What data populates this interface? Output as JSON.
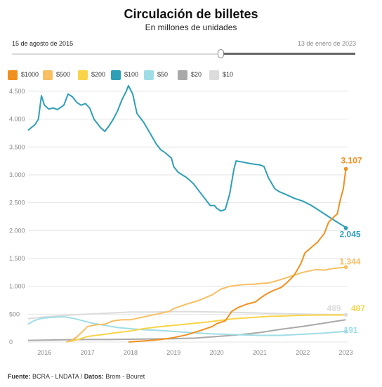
{
  "header": {
    "title": "Circulación de billetes",
    "subtitle": "En millones de unidades"
  },
  "slider": {
    "start_label": "15 de agosto de 2015",
    "end_label": "13 de enero de 2023"
  },
  "footer": {
    "fuente_label": "Fuente:",
    "fuente_value": "BCRA - LNDATA /",
    "datos_label": "Datos:",
    "datos_value": "Brom - Bouret"
  },
  "chart_data": {
    "type": "line",
    "xlim": [
      2015.62,
      2023.04
    ],
    "ylim": [
      0,
      4600
    ],
    "x_ticks": [
      2016,
      2017,
      2018,
      2019,
      2020,
      2021,
      2022,
      2023
    ],
    "y_ticks": [
      {
        "value": 0,
        "label": "0"
      },
      {
        "value": 500,
        "label": "500"
      },
      {
        "value": 1000,
        "label": "1.000"
      },
      {
        "value": 1500,
        "label": "1.500"
      },
      {
        "value": 2000,
        "label": "2.000"
      },
      {
        "value": 2500,
        "label": "2.500"
      },
      {
        "value": 3000,
        "label": "3.000"
      },
      {
        "value": 3500,
        "label": "3.500"
      },
      {
        "value": 4000,
        "label": "4.000"
      },
      {
        "value": 4500,
        "label": "4.500"
      }
    ],
    "grid": true,
    "legend_position": "top-left",
    "series": [
      {
        "name": "$1000",
        "color": "#f0901e",
        "end_label": "3.107",
        "end_value": 3107,
        "points": [
          [
            2017.95,
            0
          ],
          [
            2018.1,
            10
          ],
          [
            2018.4,
            25
          ],
          [
            2018.7,
            45
          ],
          [
            2019.0,
            80
          ],
          [
            2019.3,
            130
          ],
          [
            2019.6,
            200
          ],
          [
            2019.9,
            280
          ],
          [
            2020.0,
            330
          ],
          [
            2020.2,
            380
          ],
          [
            2020.35,
            550
          ],
          [
            2020.5,
            620
          ],
          [
            2020.7,
            680
          ],
          [
            2020.9,
            720
          ],
          [
            2021.0,
            780
          ],
          [
            2021.15,
            860
          ],
          [
            2021.3,
            920
          ],
          [
            2021.5,
            980
          ],
          [
            2021.65,
            1080
          ],
          [
            2021.8,
            1200
          ],
          [
            2021.95,
            1400
          ],
          [
            2022.05,
            1600
          ],
          [
            2022.2,
            1700
          ],
          [
            2022.35,
            1800
          ],
          [
            2022.5,
            1950
          ],
          [
            2022.6,
            2150
          ],
          [
            2022.7,
            2230
          ],
          [
            2022.8,
            2300
          ],
          [
            2022.87,
            2550
          ],
          [
            2022.94,
            2750
          ],
          [
            2023.0,
            3107
          ]
        ]
      },
      {
        "name": "$500",
        "color": "#f8bf63",
        "end_label": "1.344",
        "end_value": 1344,
        "points": [
          [
            2016.5,
            0
          ],
          [
            2016.6,
            20
          ],
          [
            2016.75,
            90
          ],
          [
            2016.9,
            200
          ],
          [
            2017.0,
            280
          ],
          [
            2017.2,
            310
          ],
          [
            2017.4,
            320
          ],
          [
            2017.6,
            380
          ],
          [
            2017.8,
            400
          ],
          [
            2018.0,
            400
          ],
          [
            2018.3,
            450
          ],
          [
            2018.6,
            500
          ],
          [
            2018.9,
            550
          ],
          [
            2019.0,
            600
          ],
          [
            2019.3,
            680
          ],
          [
            2019.6,
            750
          ],
          [
            2019.9,
            850
          ],
          [
            2020.1,
            950
          ],
          [
            2020.3,
            1000
          ],
          [
            2020.6,
            1030
          ],
          [
            2020.9,
            1040
          ],
          [
            2021.0,
            1050
          ],
          [
            2021.2,
            1060
          ],
          [
            2021.4,
            1100
          ],
          [
            2021.6,
            1150
          ],
          [
            2021.8,
            1200
          ],
          [
            2022.0,
            1250
          ],
          [
            2022.3,
            1300
          ],
          [
            2022.5,
            1290
          ],
          [
            2022.7,
            1320
          ],
          [
            2023.0,
            1344
          ]
        ]
      },
      {
        "name": "$200",
        "color": "#f9d448",
        "end_label": "",
        "end_value": 487,
        "points": [
          [
            2016.6,
            10
          ],
          [
            2016.8,
            50
          ],
          [
            2017.0,
            100
          ],
          [
            2017.3,
            130
          ],
          [
            2017.6,
            160
          ],
          [
            2018.0,
            200
          ],
          [
            2018.3,
            240
          ],
          [
            2018.6,
            270
          ],
          [
            2019.0,
            300
          ],
          [
            2019.4,
            330
          ],
          [
            2019.8,
            360
          ],
          [
            2020.0,
            380
          ],
          [
            2020.4,
            420
          ],
          [
            2020.8,
            440
          ],
          [
            2021.2,
            460
          ],
          [
            2021.6,
            470
          ],
          [
            2022.0,
            480
          ],
          [
            2022.5,
            485
          ],
          [
            2023.0,
            487
          ]
        ]
      },
      {
        "name": "$100",
        "color": "#2e9fb7",
        "end_label": "2.045",
        "end_value": 2045,
        "points": [
          [
            2015.62,
            3800
          ],
          [
            2015.7,
            3850
          ],
          [
            2015.78,
            3900
          ],
          [
            2015.86,
            4000
          ],
          [
            2015.93,
            4420
          ],
          [
            2016.0,
            4250
          ],
          [
            2016.1,
            4180
          ],
          [
            2016.2,
            4200
          ],
          [
            2016.3,
            4170
          ],
          [
            2016.45,
            4250
          ],
          [
            2016.55,
            4450
          ],
          [
            2016.65,
            4400
          ],
          [
            2016.75,
            4300
          ],
          [
            2016.85,
            4250
          ],
          [
            2016.95,
            4280
          ],
          [
            2017.05,
            4200
          ],
          [
            2017.15,
            4000
          ],
          [
            2017.3,
            3850
          ],
          [
            2017.4,
            3780
          ],
          [
            2017.5,
            3880
          ],
          [
            2017.6,
            4000
          ],
          [
            2017.7,
            4150
          ],
          [
            2017.8,
            4350
          ],
          [
            2017.9,
            4500
          ],
          [
            2017.95,
            4600
          ],
          [
            2018.05,
            4450
          ],
          [
            2018.15,
            4100
          ],
          [
            2018.3,
            3950
          ],
          [
            2018.45,
            3750
          ],
          [
            2018.6,
            3550
          ],
          [
            2018.7,
            3450
          ],
          [
            2018.8,
            3400
          ],
          [
            2018.95,
            3300
          ],
          [
            2019.0,
            3150
          ],
          [
            2019.1,
            3050
          ],
          [
            2019.3,
            2950
          ],
          [
            2019.45,
            2850
          ],
          [
            2019.6,
            2700
          ],
          [
            2019.75,
            2550
          ],
          [
            2019.85,
            2450
          ],
          [
            2019.95,
            2450
          ],
          [
            2020.0,
            2400
          ],
          [
            2020.1,
            2350
          ],
          [
            2020.2,
            2380
          ],
          [
            2020.3,
            2650
          ],
          [
            2020.4,
            3100
          ],
          [
            2020.45,
            3250
          ],
          [
            2020.6,
            3230
          ],
          [
            2020.8,
            3200
          ],
          [
            2021.0,
            3180
          ],
          [
            2021.1,
            3150
          ],
          [
            2021.2,
            2950
          ],
          [
            2021.35,
            2750
          ],
          [
            2021.45,
            2700
          ],
          [
            2021.6,
            2650
          ],
          [
            2021.8,
            2580
          ],
          [
            2022.0,
            2530
          ],
          [
            2022.2,
            2450
          ],
          [
            2022.4,
            2350
          ],
          [
            2022.6,
            2250
          ],
          [
            2022.8,
            2150
          ],
          [
            2022.95,
            2080
          ],
          [
            2023.0,
            2045
          ]
        ]
      },
      {
        "name": "$50",
        "color": "#9fdde6",
        "end_label": "191",
        "end_value": 191,
        "points": [
          [
            2015.62,
            320
          ],
          [
            2015.75,
            380
          ],
          [
            2015.9,
            420
          ],
          [
            2016.1,
            440
          ],
          [
            2016.3,
            450
          ],
          [
            2016.5,
            450
          ],
          [
            2016.7,
            420
          ],
          [
            2016.9,
            380
          ],
          [
            2017.1,
            340
          ],
          [
            2017.4,
            300
          ],
          [
            2017.7,
            260
          ],
          [
            2018.0,
            240
          ],
          [
            2018.3,
            220
          ],
          [
            2018.6,
            210
          ],
          [
            2019.0,
            190
          ],
          [
            2019.4,
            170
          ],
          [
            2019.8,
            150
          ],
          [
            2020.2,
            140
          ],
          [
            2020.6,
            130
          ],
          [
            2021.0,
            120
          ],
          [
            2021.5,
            120
          ],
          [
            2022.0,
            140
          ],
          [
            2022.5,
            160
          ],
          [
            2023.0,
            191
          ]
        ]
      },
      {
        "name": "$20",
        "color": "#a9a9a9",
        "end_label": "",
        "end_value": 400,
        "points": [
          [
            2015.62,
            30
          ],
          [
            2016.0,
            35
          ],
          [
            2016.5,
            40
          ],
          [
            2017.0,
            45
          ],
          [
            2017.5,
            45
          ],
          [
            2018.0,
            50
          ],
          [
            2018.5,
            55
          ],
          [
            2019.0,
            60
          ],
          [
            2019.5,
            70
          ],
          [
            2020.0,
            100
          ],
          [
            2020.5,
            130
          ],
          [
            2021.0,
            170
          ],
          [
            2021.5,
            230
          ],
          [
            2022.0,
            280
          ],
          [
            2022.5,
            340
          ],
          [
            2023.0,
            400
          ]
        ]
      },
      {
        "name": "$10",
        "color": "#dcdcdc",
        "end_label": "489",
        "end_value": 489,
        "points": [
          [
            2015.62,
            420
          ],
          [
            2016.0,
            450
          ],
          [
            2016.5,
            480
          ],
          [
            2017.0,
            500
          ],
          [
            2017.5,
            520
          ],
          [
            2018.0,
            540
          ],
          [
            2018.5,
            540
          ],
          [
            2019.0,
            545
          ],
          [
            2019.5,
            545
          ],
          [
            2020.0,
            540
          ],
          [
            2020.5,
            530
          ],
          [
            2021.0,
            520
          ],
          [
            2021.5,
            510
          ],
          [
            2022.0,
            500
          ],
          [
            2022.5,
            495
          ],
          [
            2023.0,
            489
          ]
        ]
      }
    ]
  }
}
